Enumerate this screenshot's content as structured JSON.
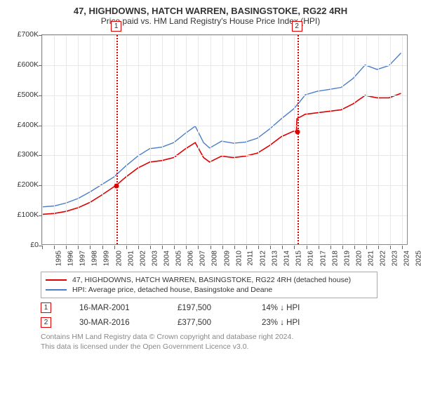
{
  "title": "47, HIGHDOWNS, HATCH WARREN, BASINGSTOKE, RG22 4RH",
  "subtitle": "Price paid vs. HM Land Registry's House Price Index (HPI)",
  "chart": {
    "type": "line",
    "background_color": "#ffffff",
    "border_color": "#888888",
    "grid_color": "#e8e8e8",
    "ylim": [
      0,
      700000
    ],
    "ytick_step": 100000,
    "ytick_labels": [
      "£0",
      "£100K",
      "£200K",
      "£300K",
      "£400K",
      "£500K",
      "£600K",
      "£700K"
    ],
    "xlim": [
      1995,
      2025.5
    ],
    "xtick_years": [
      1995,
      1996,
      1997,
      1998,
      1999,
      2000,
      2001,
      2002,
      2003,
      2004,
      2005,
      2006,
      2007,
      2008,
      2009,
      2010,
      2011,
      2012,
      2013,
      2014,
      2015,
      2016,
      2017,
      2018,
      2019,
      2020,
      2021,
      2022,
      2023,
      2024,
      2025
    ],
    "label_fontsize": 10.5,
    "series": [
      {
        "name": "property",
        "label": "47, HIGHDOWNS, HATCH WARREN, BASINGSTOKE, RG22 4RH (detached house)",
        "color": "#e00000",
        "line_width": 1.6,
        "points": [
          [
            1995,
            100000
          ],
          [
            1996,
            103000
          ],
          [
            1997,
            110000
          ],
          [
            1998,
            122000
          ],
          [
            1999,
            140000
          ],
          [
            2000,
            165000
          ],
          [
            2001.2,
            197500
          ],
          [
            2002,
            225000
          ],
          [
            2003,
            255000
          ],
          [
            2004,
            275000
          ],
          [
            2005,
            280000
          ],
          [
            2006,
            290000
          ],
          [
            2007,
            320000
          ],
          [
            2007.8,
            340000
          ],
          [
            2008.5,
            290000
          ],
          [
            2009,
            275000
          ],
          [
            2010,
            295000
          ],
          [
            2011,
            290000
          ],
          [
            2012,
            295000
          ],
          [
            2013,
            305000
          ],
          [
            2014,
            330000
          ],
          [
            2015,
            360000
          ],
          [
            2016,
            378000
          ],
          [
            2016.25,
            377500
          ],
          [
            2016.3,
            420000
          ],
          [
            2017,
            435000
          ],
          [
            2018,
            440000
          ],
          [
            2019,
            445000
          ],
          [
            2020,
            450000
          ],
          [
            2021,
            470000
          ],
          [
            2022,
            498000
          ],
          [
            2023,
            490000
          ],
          [
            2024,
            490000
          ],
          [
            2025,
            505000
          ]
        ]
      },
      {
        "name": "hpi",
        "label": "HPI: Average price, detached house, Basingstoke and Deane",
        "color": "#4a7dc9",
        "line_width": 1.4,
        "points": [
          [
            1995,
            125000
          ],
          [
            1996,
            128000
          ],
          [
            1997,
            138000
          ],
          [
            1998,
            153000
          ],
          [
            1999,
            175000
          ],
          [
            2000,
            200000
          ],
          [
            2001,
            225000
          ],
          [
            2002,
            262000
          ],
          [
            2003,
            295000
          ],
          [
            2004,
            320000
          ],
          [
            2005,
            325000
          ],
          [
            2006,
            340000
          ],
          [
            2007,
            372000
          ],
          [
            2007.8,
            395000
          ],
          [
            2008.5,
            340000
          ],
          [
            2009,
            322000
          ],
          [
            2010,
            345000
          ],
          [
            2011,
            338000
          ],
          [
            2012,
            342000
          ],
          [
            2013,
            355000
          ],
          [
            2014,
            385000
          ],
          [
            2015,
            420000
          ],
          [
            2016,
            452000
          ],
          [
            2016.5,
            475000
          ],
          [
            2017,
            500000
          ],
          [
            2018,
            512000
          ],
          [
            2019,
            518000
          ],
          [
            2020,
            525000
          ],
          [
            2021,
            555000
          ],
          [
            2022,
            600000
          ],
          [
            2023,
            585000
          ],
          [
            2024,
            598000
          ],
          [
            2025,
            640000
          ]
        ]
      }
    ],
    "markers": [
      {
        "id": "1",
        "x": 2001.2,
        "y": 197500,
        "color": "#e00000"
      },
      {
        "id": "2",
        "x": 2016.25,
        "y": 377500,
        "color": "#e00000"
      }
    ],
    "marker_line_color": "#e00000"
  },
  "transactions": [
    {
      "id": "1",
      "date": "16-MAR-2001",
      "price": "£197,500",
      "delta": "14% ↓ HPI",
      "box_color": "#e00000"
    },
    {
      "id": "2",
      "date": "30-MAR-2016",
      "price": "£377,500",
      "delta": "23% ↓ HPI",
      "box_color": "#e00000"
    }
  ],
  "footer": {
    "line1": "Contains HM Land Registry data © Crown copyright and database right 2024.",
    "line2": "This data is licensed under the Open Government Licence v3.0."
  }
}
